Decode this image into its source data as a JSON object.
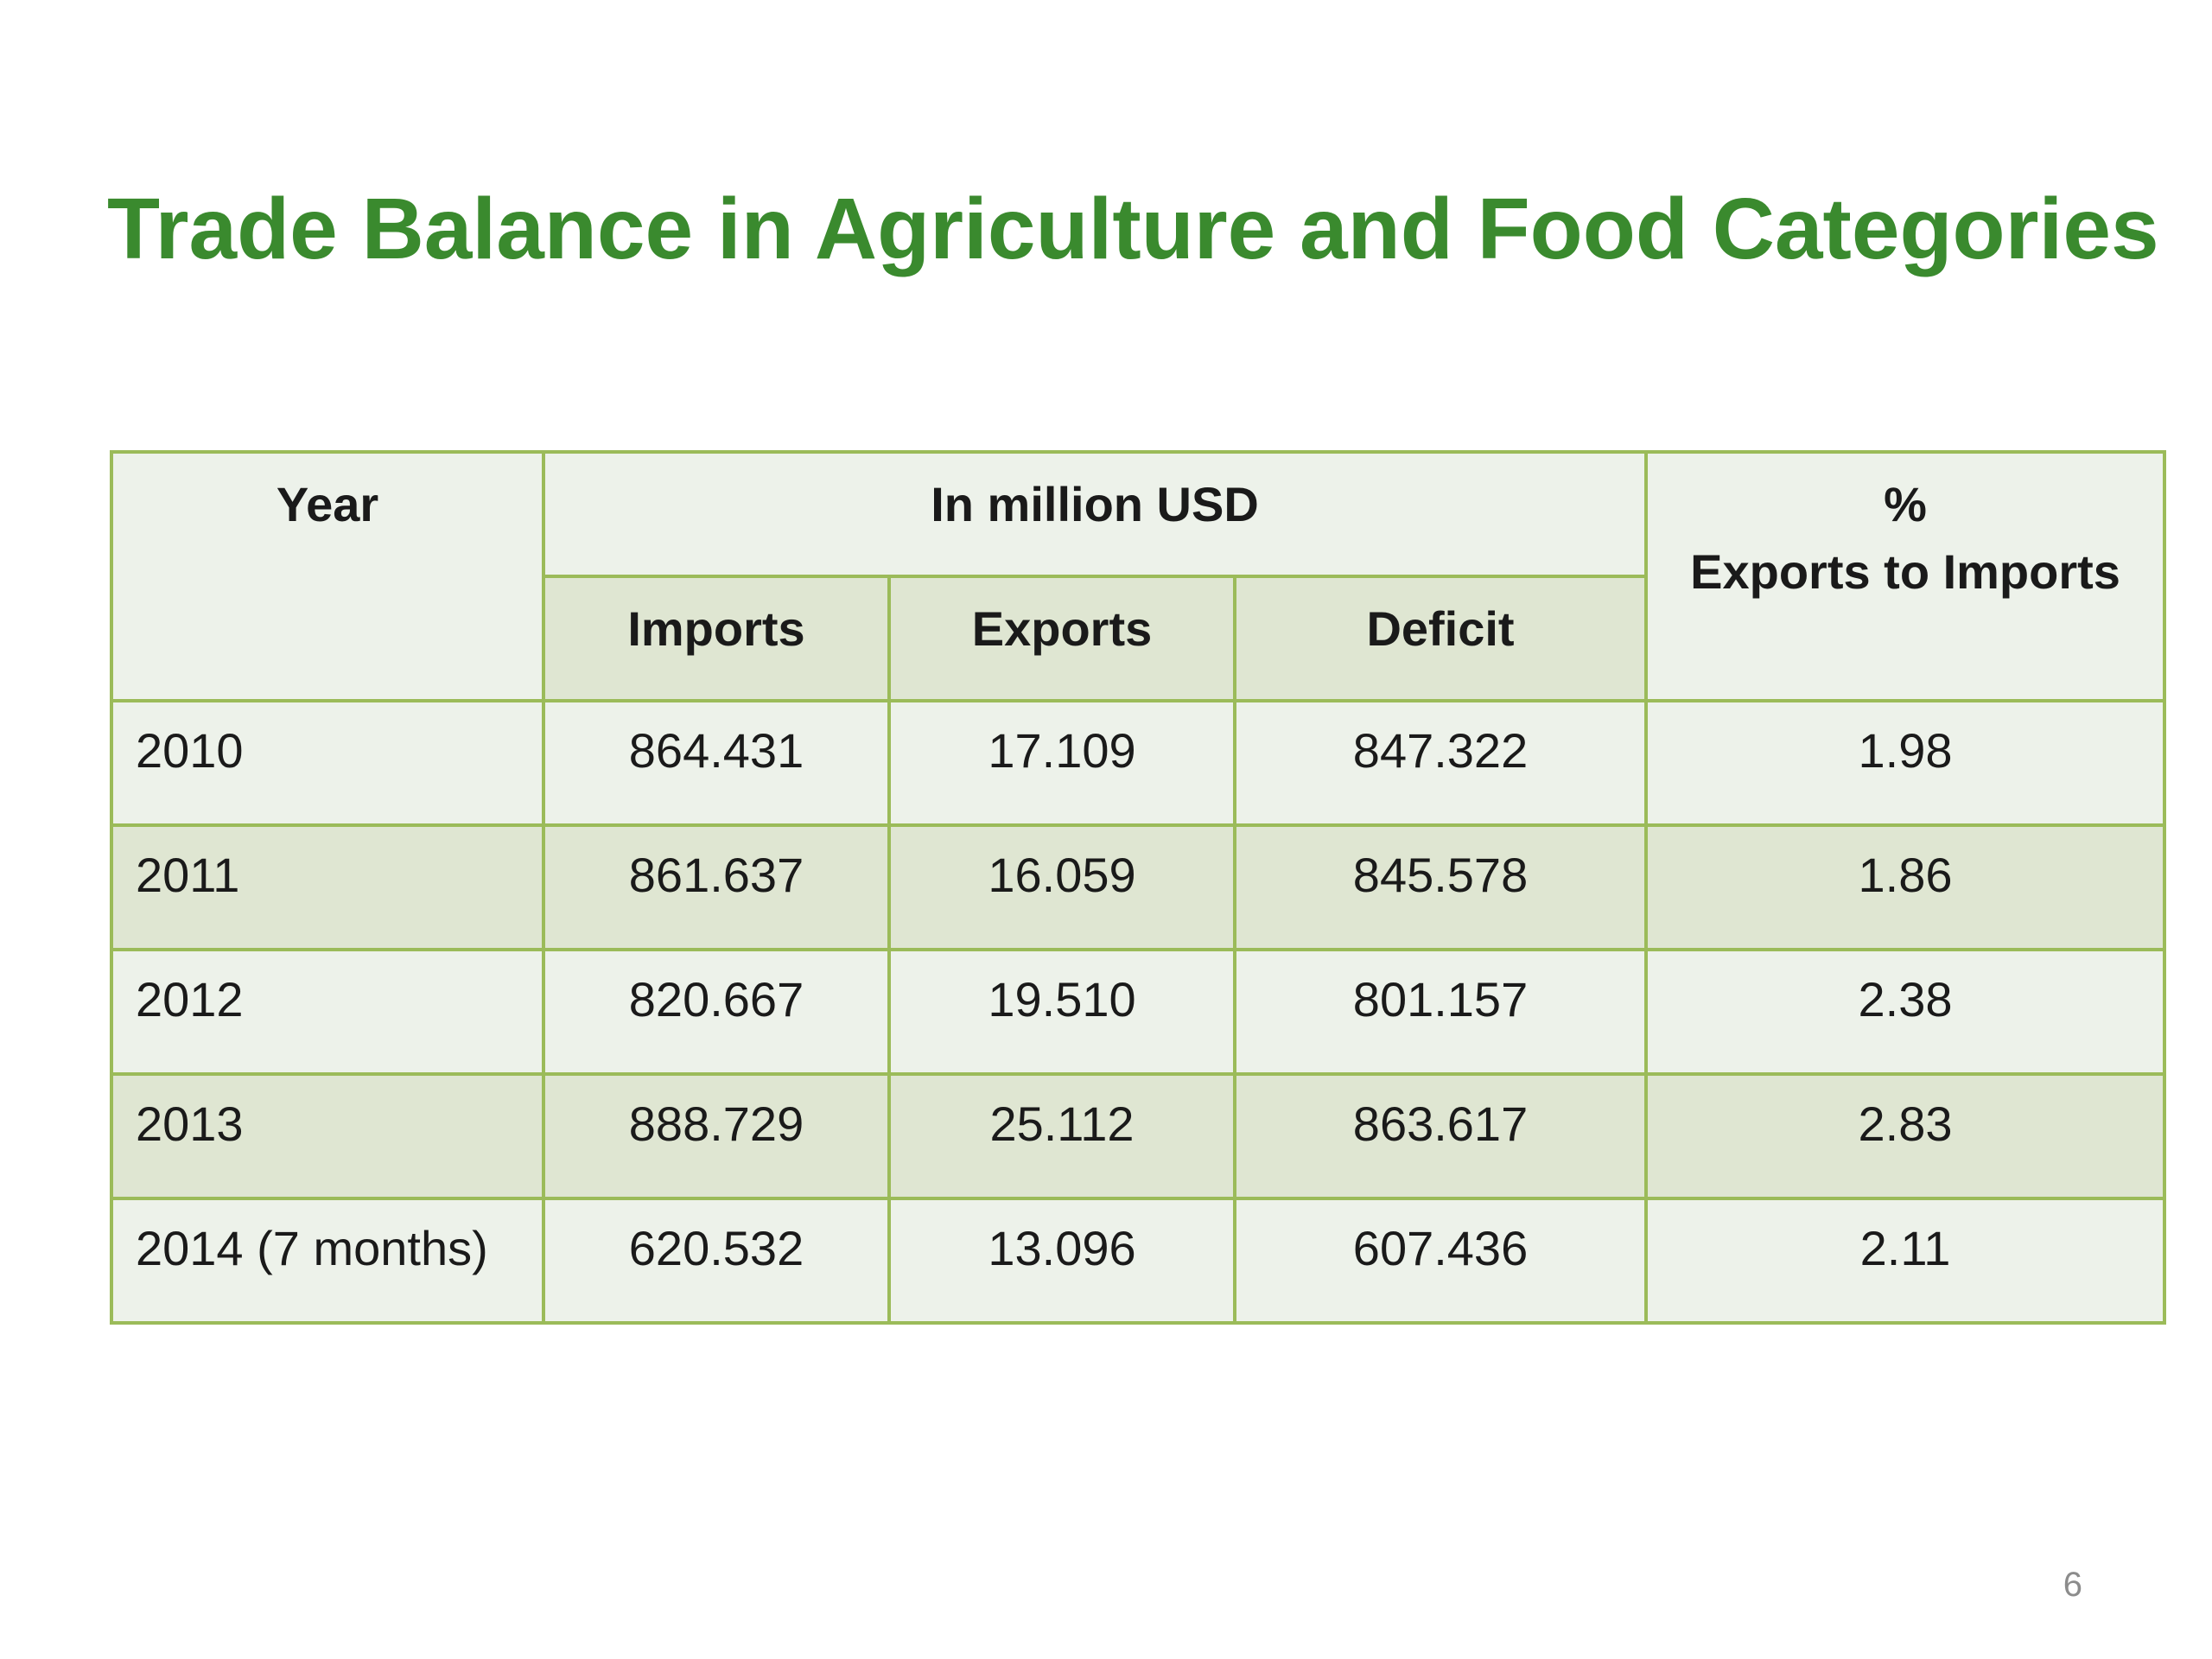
{
  "slide": {
    "title": "Trade Balance in Agriculture and Food Categories",
    "page_number": "6"
  },
  "table": {
    "header": {
      "year": "Year",
      "group": "In million USD",
      "percent_symbol": "%",
      "percent_label": "Exports to Imports",
      "imports": "Imports",
      "exports": "Exports",
      "deficit": "Deficit"
    },
    "rows": [
      {
        "year": "2010",
        "imports": "864.431",
        "exports": "17.109",
        "deficit": "847.322",
        "ratio": "1.98"
      },
      {
        "year": "2011",
        "imports": "861.637",
        "exports": "16.059",
        "deficit": "845.578",
        "ratio": "1.86"
      },
      {
        "year": "2012",
        "imports": "820.667",
        "exports": "19.510",
        "deficit": "801.157",
        "ratio": "2.38"
      },
      {
        "year": "2013",
        "imports": "888.729",
        "exports": "25.112",
        "deficit": "863.617",
        "ratio": "2.83"
      },
      {
        "year": "2014 (7 months)",
        "imports": "620.532",
        "exports": "13.096",
        "deficit": "607.436",
        "ratio": "2.11"
      }
    ]
  },
  "colors": {
    "title": "#3a8a2e",
    "border": "#9bbb59",
    "row_light": "#edf2ea",
    "row_dark": "#dfe6d2"
  }
}
